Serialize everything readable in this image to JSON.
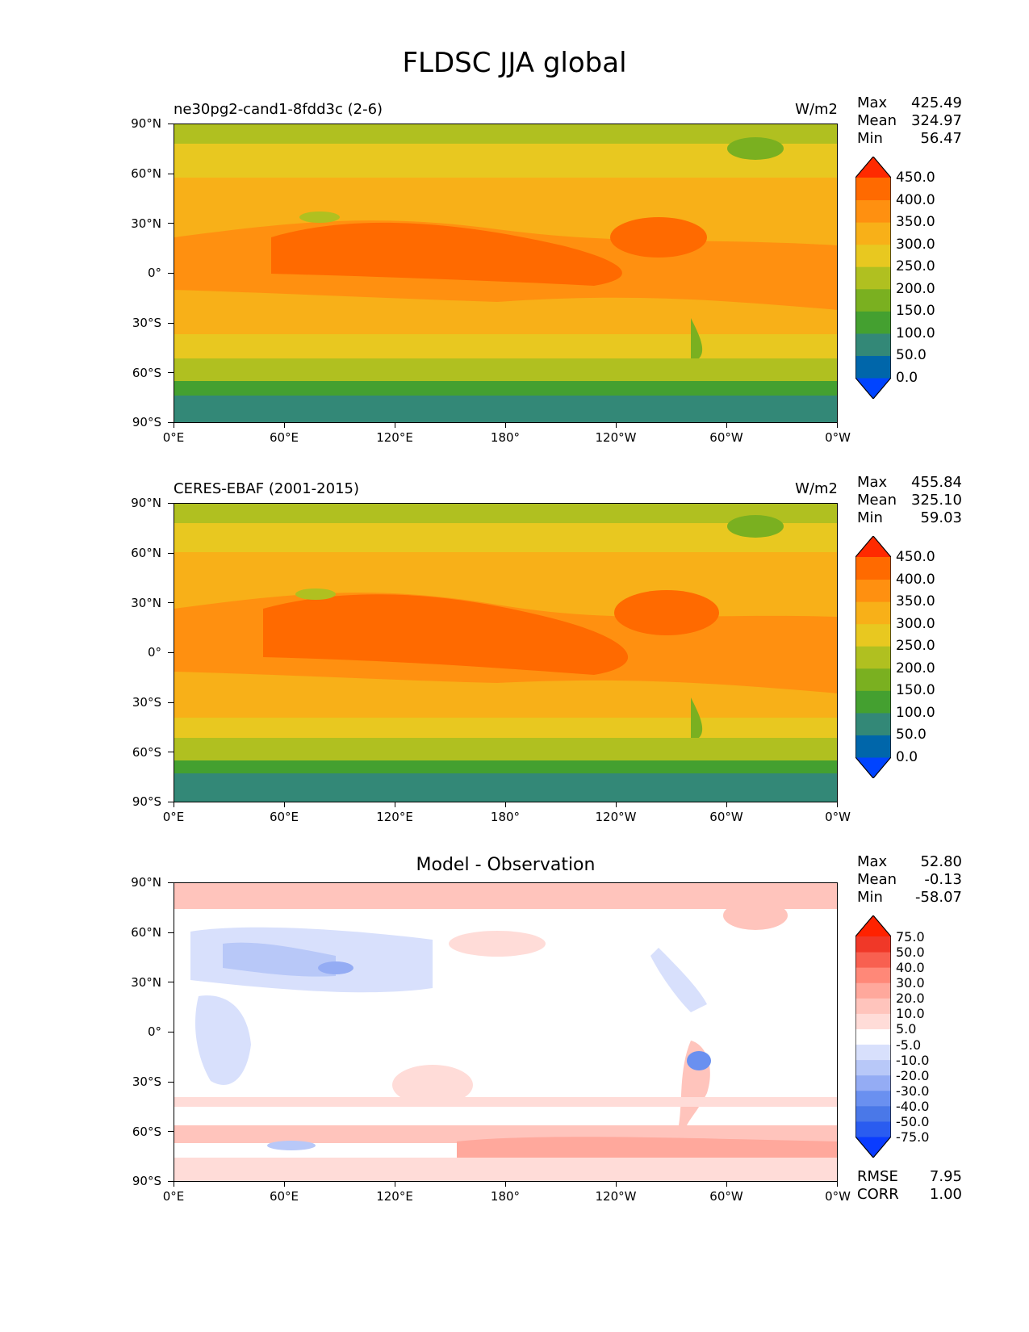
{
  "figure_title": "FLDSC JJA global",
  "panels": [
    {
      "title_left": "ne30pg2-cand1-8fdd3c (2-6)",
      "title_right": "W/m2",
      "stats": {
        "max_label": "Max",
        "max": "425.49",
        "mean_label": "Mean",
        "mean": "324.97",
        "min_label": "Min",
        "min": "56.47"
      },
      "colorbar_labels": [
        "450.0",
        "400.0",
        "350.0",
        "300.0",
        "250.0",
        "200.0",
        "150.0",
        "100.0",
        "50.0",
        "0.0"
      ]
    },
    {
      "title_left": "CERES-EBAF (2001-2015)",
      "title_right": "W/m2",
      "stats": {
        "max_label": "Max",
        "max": "455.84",
        "mean_label": "Mean",
        "mean": "325.10",
        "min_label": "Min",
        "min": "59.03"
      },
      "colorbar_labels": [
        "450.0",
        "400.0",
        "350.0",
        "300.0",
        "250.0",
        "200.0",
        "150.0",
        "100.0",
        "50.0",
        "0.0"
      ]
    },
    {
      "title_center": "Model - Observation",
      "stats": {
        "max_label": "Max",
        "max": "52.80",
        "mean_label": "Mean",
        "mean": "-0.13",
        "min_label": "Min",
        "min": "-58.07"
      },
      "colorbar_labels": [
        "75.0",
        "50.0",
        "40.0",
        "30.0",
        "20.0",
        "10.0",
        "5.0",
        "-5.0",
        "-10.0",
        "-20.0",
        "-30.0",
        "-40.0",
        "-50.0",
        "-75.0"
      ],
      "rmse_label": "RMSE",
      "rmse": "7.95",
      "corr_label": "CORR",
      "corr": "1.00"
    }
  ],
  "axes": {
    "y_ticks": [
      "90°N",
      "60°N",
      "30°N",
      "0°",
      "30°S",
      "60°S",
      "90°S"
    ],
    "x_ticks": [
      "0°E",
      "60°E",
      "120°E",
      "180°",
      "120°W",
      "60°W",
      "0°W"
    ]
  },
  "colors": {
    "abs_levels": [
      "#0044ff",
      "#0066aa",
      "#338877",
      "#44a030",
      "#7ab020",
      "#b0c020",
      "#e8c820",
      "#f8b018",
      "#ff9010",
      "#ff6a00",
      "#ff2a00"
    ],
    "diff_levels": [
      "#0a3cff",
      "#2a5cf0",
      "#4a78e8",
      "#6a90f0",
      "#94acf4",
      "#b8c8f8",
      "#d8e0fc",
      "#ffffff",
      "#ffdcd8",
      "#ffc4bc",
      "#ffa89c",
      "#ff8878",
      "#f86050",
      "#f03828",
      "#ff2200"
    ]
  },
  "chart_data": [
    {
      "type": "heatmap",
      "title": "ne30pg2-cand1-8fdd3c (2-6)",
      "units": "W/m2",
      "x_range": [
        0,
        360
      ],
      "y_range": [
        -90,
        90
      ],
      "levels": [
        0,
        50,
        100,
        150,
        200,
        250,
        300,
        350,
        400,
        450
      ],
      "stats": {
        "max": 425.49,
        "mean": 324.97,
        "min": 56.47
      }
    },
    {
      "type": "heatmap",
      "title": "CERES-EBAF (2001-2015)",
      "units": "W/m2",
      "x_range": [
        0,
        360
      ],
      "y_range": [
        -90,
        90
      ],
      "levels": [
        0,
        50,
        100,
        150,
        200,
        250,
        300,
        350,
        400,
        450
      ],
      "stats": {
        "max": 455.84,
        "mean": 325.1,
        "min": 59.03
      }
    },
    {
      "type": "heatmap",
      "title": "Model - Observation",
      "x_range": [
        0,
        360
      ],
      "y_range": [
        -90,
        90
      ],
      "levels": [
        -75,
        -50,
        -40,
        -30,
        -20,
        -10,
        -5,
        5,
        10,
        20,
        30,
        40,
        50,
        75
      ],
      "stats": {
        "max": 52.8,
        "mean": -0.13,
        "min": -58.07,
        "rmse": 7.95,
        "corr": 1.0
      }
    }
  ]
}
